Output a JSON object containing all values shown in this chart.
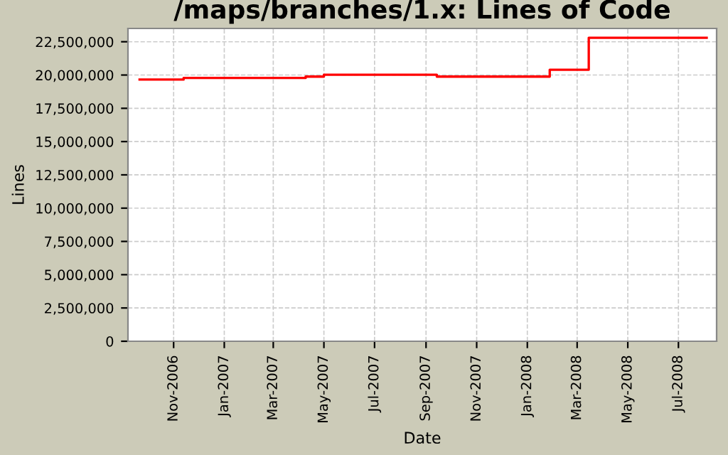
{
  "chart_data": {
    "type": "step",
    "title": "/maps/branches/1.x: Lines of Code",
    "xlabel": "Date",
    "ylabel": "Lines",
    "x": [
      "2006-09-21",
      "2006-11-13",
      "2007-04-09",
      "2007-05-01",
      "2007-09-14",
      "2008-01-28",
      "2008-03-15",
      "2008-08-04"
    ],
    "series": [
      {
        "color": "#ff0000",
        "values": [
          19660000,
          19780000,
          19880000,
          20020000,
          19880000,
          20400000,
          22800000,
          22800000
        ]
      }
    ],
    "xlim": [
      "2006-09-07",
      "2008-08-16"
    ],
    "xticks": [
      {
        "value": "2006-11-01",
        "label": "Nov-2006"
      },
      {
        "value": "2007-01-01",
        "label": "Jan-2007"
      },
      {
        "value": "2007-03-01",
        "label": "Mar-2007"
      },
      {
        "value": "2007-05-01",
        "label": "May-2007"
      },
      {
        "value": "2007-07-01",
        "label": "Jul-2007"
      },
      {
        "value": "2007-09-01",
        "label": "Sep-2007"
      },
      {
        "value": "2007-11-01",
        "label": "Nov-2007"
      },
      {
        "value": "2008-01-01",
        "label": "Jan-2008"
      },
      {
        "value": "2008-03-01",
        "label": "Mar-2008"
      },
      {
        "value": "2008-05-01",
        "label": "May-2008"
      },
      {
        "value": "2008-07-01",
        "label": "Jul-2008"
      }
    ],
    "ylim": [
      0,
      23500000
    ],
    "yticks": [
      {
        "value": 0,
        "label": "0"
      },
      {
        "value": 2500000,
        "label": "2,500,000"
      },
      {
        "value": 5000000,
        "label": "5,000,000"
      },
      {
        "value": 7500000,
        "label": "7,500,000"
      },
      {
        "value": 10000000,
        "label": "10,000,000"
      },
      {
        "value": 12500000,
        "label": "12,500,000"
      },
      {
        "value": 15000000,
        "label": "15,000,000"
      },
      {
        "value": 17500000,
        "label": "17,500,000"
      },
      {
        "value": 20000000,
        "label": "20,000,000"
      },
      {
        "value": 22500000,
        "label": "22,500,000"
      }
    ],
    "grid": true,
    "legend": false
  }
}
